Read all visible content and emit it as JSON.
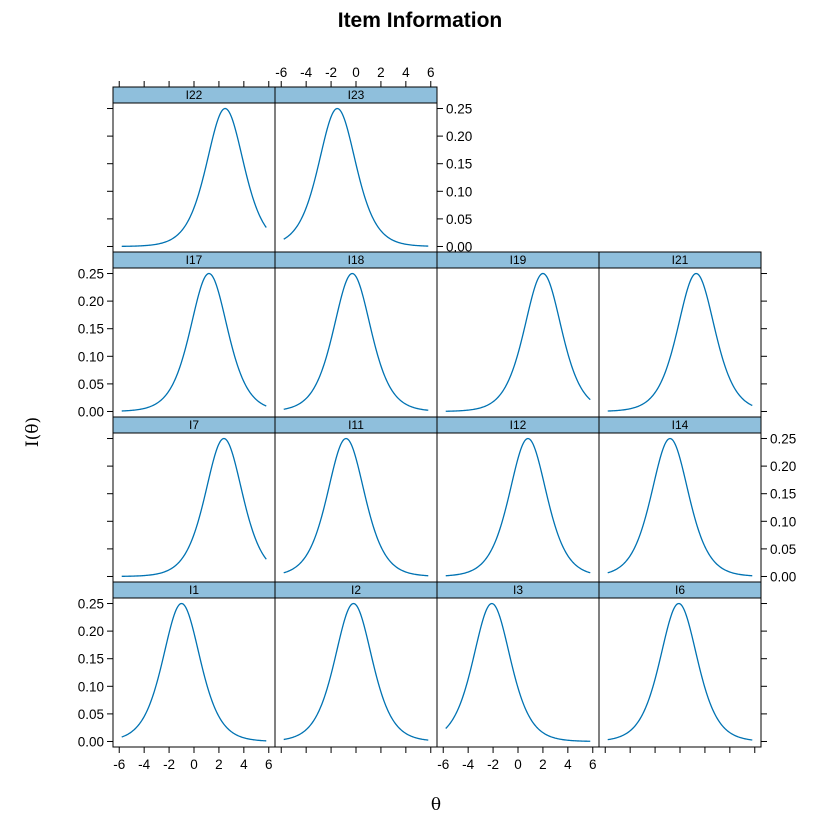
{
  "chart_data": {
    "type": "line",
    "title": "Item Information",
    "xlabel": "θ",
    "ylabel": "I(θ)",
    "xlim": [
      -6.5,
      6.5
    ],
    "ylim": [
      -0.01,
      0.26
    ],
    "x_ticks": [
      -6,
      -4,
      -2,
      0,
      2,
      4,
      6
    ],
    "y_ticks": [
      0.0,
      0.05,
      0.1,
      0.15,
      0.2,
      0.25
    ],
    "x_tick_labels": [
      "-6",
      "-4",
      "-2",
      "0",
      "2",
      "4",
      "6"
    ],
    "y_tick_labels": [
      "0.00",
      "0.05",
      "0.10",
      "0.15",
      "0.20",
      "0.25"
    ],
    "grid": false,
    "line_color": "#0072b2",
    "strip_color": "#8fbfdc",
    "x_range": [
      -5.8,
      5.8
    ],
    "panels": [
      {
        "name": "I22",
        "row": 0,
        "col": 0,
        "peak": 2.5,
        "max": 0.25
      },
      {
        "name": "I23",
        "row": 0,
        "col": 1,
        "peak": -1.5,
        "max": 0.25
      },
      {
        "name": "I17",
        "row": 1,
        "col": 0,
        "peak": 1.2,
        "max": 0.25
      },
      {
        "name": "I18",
        "row": 1,
        "col": 1,
        "peak": -0.3,
        "max": 0.25
      },
      {
        "name": "I19",
        "row": 1,
        "col": 2,
        "peak": 2.0,
        "max": 0.25
      },
      {
        "name": "I21",
        "row": 1,
        "col": 3,
        "peak": 1.3,
        "max": 0.25
      },
      {
        "name": "I7",
        "row": 2,
        "col": 0,
        "peak": 2.4,
        "max": 0.25
      },
      {
        "name": "I11",
        "row": 2,
        "col": 1,
        "peak": -0.8,
        "max": 0.25
      },
      {
        "name": "I12",
        "row": 2,
        "col": 2,
        "peak": 0.8,
        "max": 0.25
      },
      {
        "name": "I14",
        "row": 2,
        "col": 3,
        "peak": -0.8,
        "max": 0.25
      },
      {
        "name": "I1",
        "row": 3,
        "col": 0,
        "peak": -1.0,
        "max": 0.25
      },
      {
        "name": "I2",
        "row": 3,
        "col": 1,
        "peak": -0.2,
        "max": 0.25
      },
      {
        "name": "I3",
        "row": 3,
        "col": 2,
        "peak": -2.1,
        "max": 0.25
      },
      {
        "name": "I6",
        "row": 3,
        "col": 3,
        "peak": -0.1,
        "max": 0.25
      }
    ]
  }
}
